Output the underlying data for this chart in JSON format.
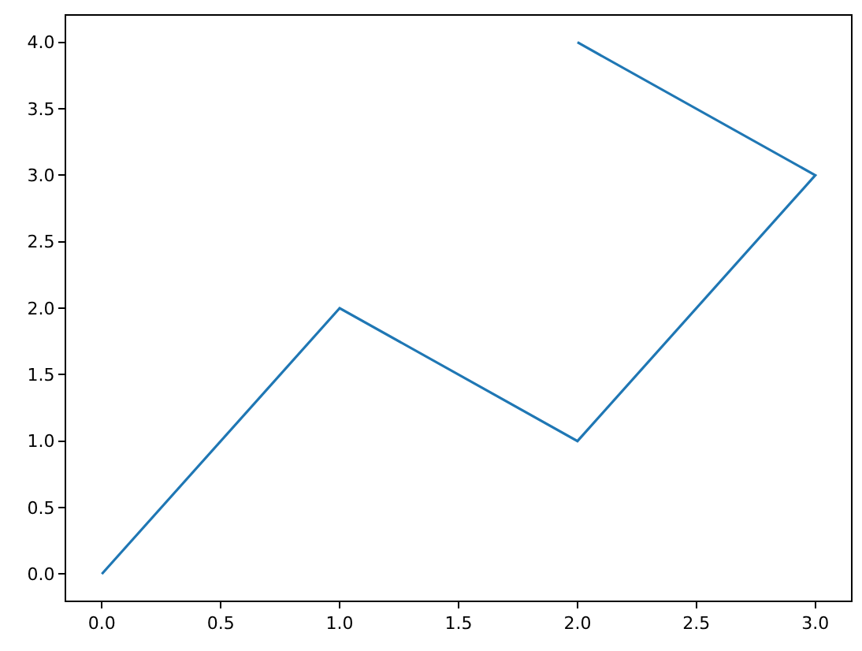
{
  "chart_data": {
    "type": "line",
    "x": [
      0,
      1,
      2,
      3,
      2
    ],
    "series": [
      {
        "color": "#1f77b4",
        "values": [
          0,
          2,
          1,
          3,
          4
        ]
      }
    ],
    "xlim": [
      -0.15,
      3.15
    ],
    "ylim": [
      -0.2,
      4.2
    ],
    "xticks": [
      {
        "value": 0,
        "label": "0.0"
      },
      {
        "value": 0.5,
        "label": "0.5"
      },
      {
        "value": 1,
        "label": "1.0"
      },
      {
        "value": 1.5,
        "label": "1.5"
      },
      {
        "value": 2,
        "label": "2.0"
      },
      {
        "value": 2.5,
        "label": "2.5"
      },
      {
        "value": 3,
        "label": "3.0"
      }
    ],
    "yticks": [
      {
        "value": 0,
        "label": "0.0"
      },
      {
        "value": 0.5,
        "label": "0.5"
      },
      {
        "value": 1,
        "label": "1.0"
      },
      {
        "value": 1.5,
        "label": "1.5"
      },
      {
        "value": 2,
        "label": "2.0"
      },
      {
        "value": 2.5,
        "label": "2.5"
      },
      {
        "value": 3,
        "label": "3.0"
      },
      {
        "value": 3.5,
        "label": "3.5"
      },
      {
        "value": 4,
        "label": "4.0"
      }
    ],
    "line_style": "solid"
  }
}
